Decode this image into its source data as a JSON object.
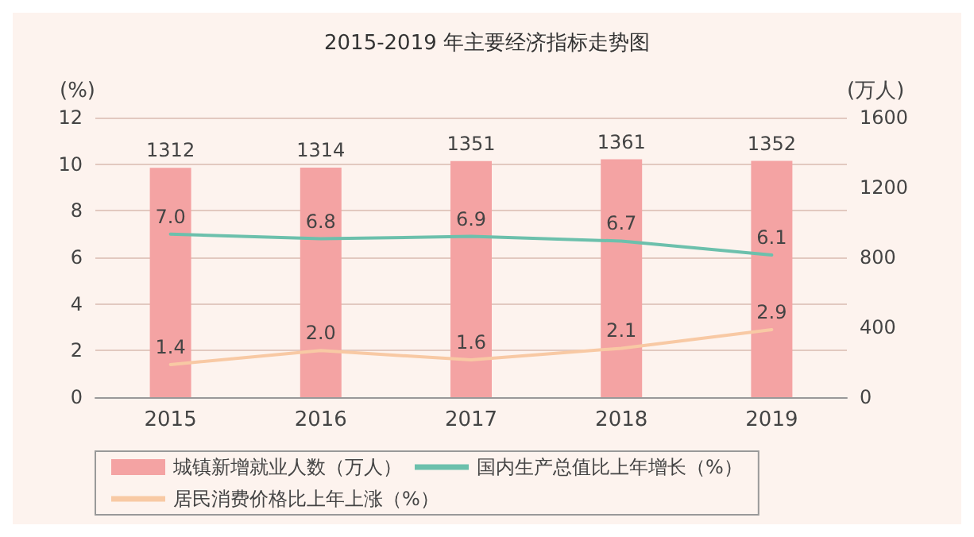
{
  "chart_data": {
    "type": "bar",
    "title": "2015-2019 年主要经济指标走势图",
    "categories": [
      "2015",
      "2016",
      "2017",
      "2018",
      "2019"
    ],
    "series": [
      {
        "name": "城镇新增就业人数（万人）",
        "axis": "y2",
        "color": "#f4a3a3",
        "values": [
          1312,
          1314,
          1351,
          1361,
          1352
        ],
        "value_labels": [
          "1312",
          "1314",
          "1351",
          "1361",
          "1352"
        ]
      },
      {
        "name": "国内生产总值比上年增长（%）",
        "type": "line",
        "color": "#6cc0ac",
        "values": [
          7.0,
          6.8,
          6.9,
          6.7,
          6.1
        ],
        "value_labels": [
          "7.0",
          "6.8",
          "6.9",
          "6.7",
          "6.1"
        ]
      },
      {
        "name": "居民消费价格比上年上涨（%）",
        "type": "line",
        "color": "#f8c9a4",
        "values": [
          1.4,
          2.0,
          1.6,
          2.1,
          2.9
        ],
        "value_labels": [
          "1.4",
          "2.0",
          "1.6",
          "2.1",
          "2.9"
        ]
      }
    ],
    "ylabel": "(%)",
    "y2label": "(万人)",
    "ylim": [
      0,
      12
    ],
    "yticks": [
      0,
      2,
      4,
      6,
      8,
      10,
      12
    ],
    "y2lim": [
      0,
      1600
    ],
    "y2ticks": [
      0,
      400,
      800,
      1200,
      1600
    ],
    "grid": "y",
    "legend": "bottom",
    "marker": "none",
    "line_style": "solid"
  }
}
